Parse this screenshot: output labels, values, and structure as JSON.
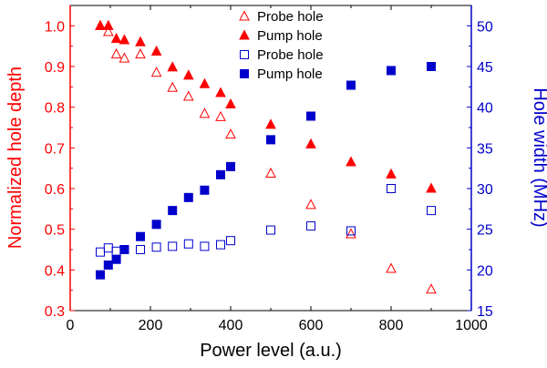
{
  "chart_data": {
    "type": "scatter",
    "xlabel": "Power level (a.u.)",
    "ylabel_left": "Normalized hole depth",
    "ylabel_right": "Hole width (MHz)",
    "xlim": [
      0,
      1000
    ],
    "ylim_left": [
      0.3,
      1.05
    ],
    "ylim_right": [
      15,
      52.5
    ],
    "xticks": [
      0,
      200,
      400,
      600,
      800,
      1000
    ],
    "yticks_left": [
      0.3,
      0.4,
      0.5,
      0.6,
      0.7,
      0.8,
      0.9,
      1.0
    ],
    "yticks_right": [
      15,
      20,
      25,
      30,
      35,
      40,
      45,
      50
    ],
    "colors": {
      "left_axis": "#ff0000",
      "right_axis": "#0000cc",
      "depth": "#ff0000",
      "width": "#0000cc"
    },
    "legend_position": "top-center",
    "series": [
      {
        "name": "Probe hole",
        "axis": "left",
        "marker": "open-triangle",
        "color": "#ff0000",
        "x": [
          75,
          95,
          115,
          135,
          175,
          215,
          255,
          295,
          335,
          375,
          400,
          500,
          600,
          700,
          800,
          900
        ],
        "y": [
          1.0,
          0.985,
          0.93,
          0.92,
          0.93,
          0.885,
          0.848,
          0.826,
          0.784,
          0.776,
          0.733,
          0.637,
          0.56,
          0.488,
          0.403,
          0.352
        ]
      },
      {
        "name": "Pump hole",
        "axis": "left",
        "marker": "filled-triangle",
        "color": "#ff0000",
        "x": [
          75,
          95,
          115,
          135,
          175,
          215,
          255,
          295,
          335,
          375,
          400,
          500,
          600,
          700,
          800,
          900
        ],
        "y": [
          1.0,
          1.0,
          0.968,
          0.965,
          0.96,
          0.937,
          0.898,
          0.878,
          0.857,
          0.835,
          0.807,
          0.757,
          0.709,
          0.665,
          0.635,
          0.6
        ]
      },
      {
        "name": "Probe hole",
        "axis": "right",
        "marker": "open-square",
        "color": "#0000cc",
        "x": [
          75,
          95,
          115,
          135,
          175,
          215,
          255,
          295,
          335,
          375,
          400,
          500,
          600,
          700,
          800,
          900
        ],
        "y": [
          22.2,
          22.7,
          22.3,
          22.5,
          22.5,
          22.8,
          22.9,
          23.2,
          22.9,
          23.1,
          23.6,
          24.9,
          25.4,
          24.8,
          30.0,
          27.3
        ]
      },
      {
        "name": "Pump hole",
        "axis": "right",
        "marker": "filled-square",
        "color": "#0000cc",
        "x": [
          75,
          95,
          115,
          135,
          175,
          215,
          255,
          295,
          335,
          375,
          400,
          500,
          600,
          700,
          800,
          900
        ],
        "y": [
          19.4,
          20.6,
          21.3,
          22.5,
          24.1,
          25.6,
          27.3,
          28.9,
          29.8,
          31.7,
          32.7,
          36.0,
          38.9,
          42.7,
          44.5,
          45.0
        ]
      }
    ]
  }
}
